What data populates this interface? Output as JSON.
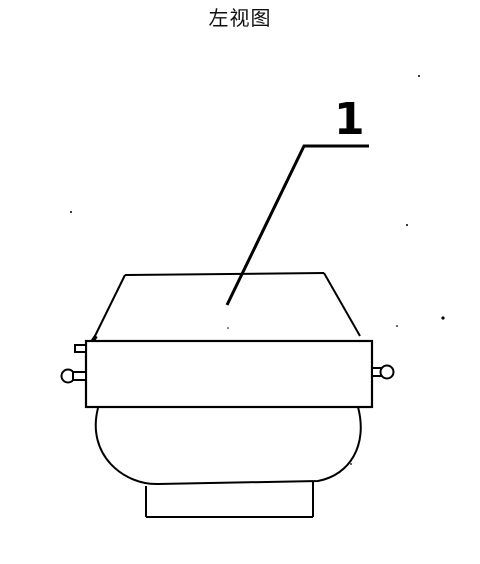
{
  "title": "左视图",
  "callout_label": "1",
  "colors": {
    "line": "#000000",
    "background": "#ffffff"
  }
}
